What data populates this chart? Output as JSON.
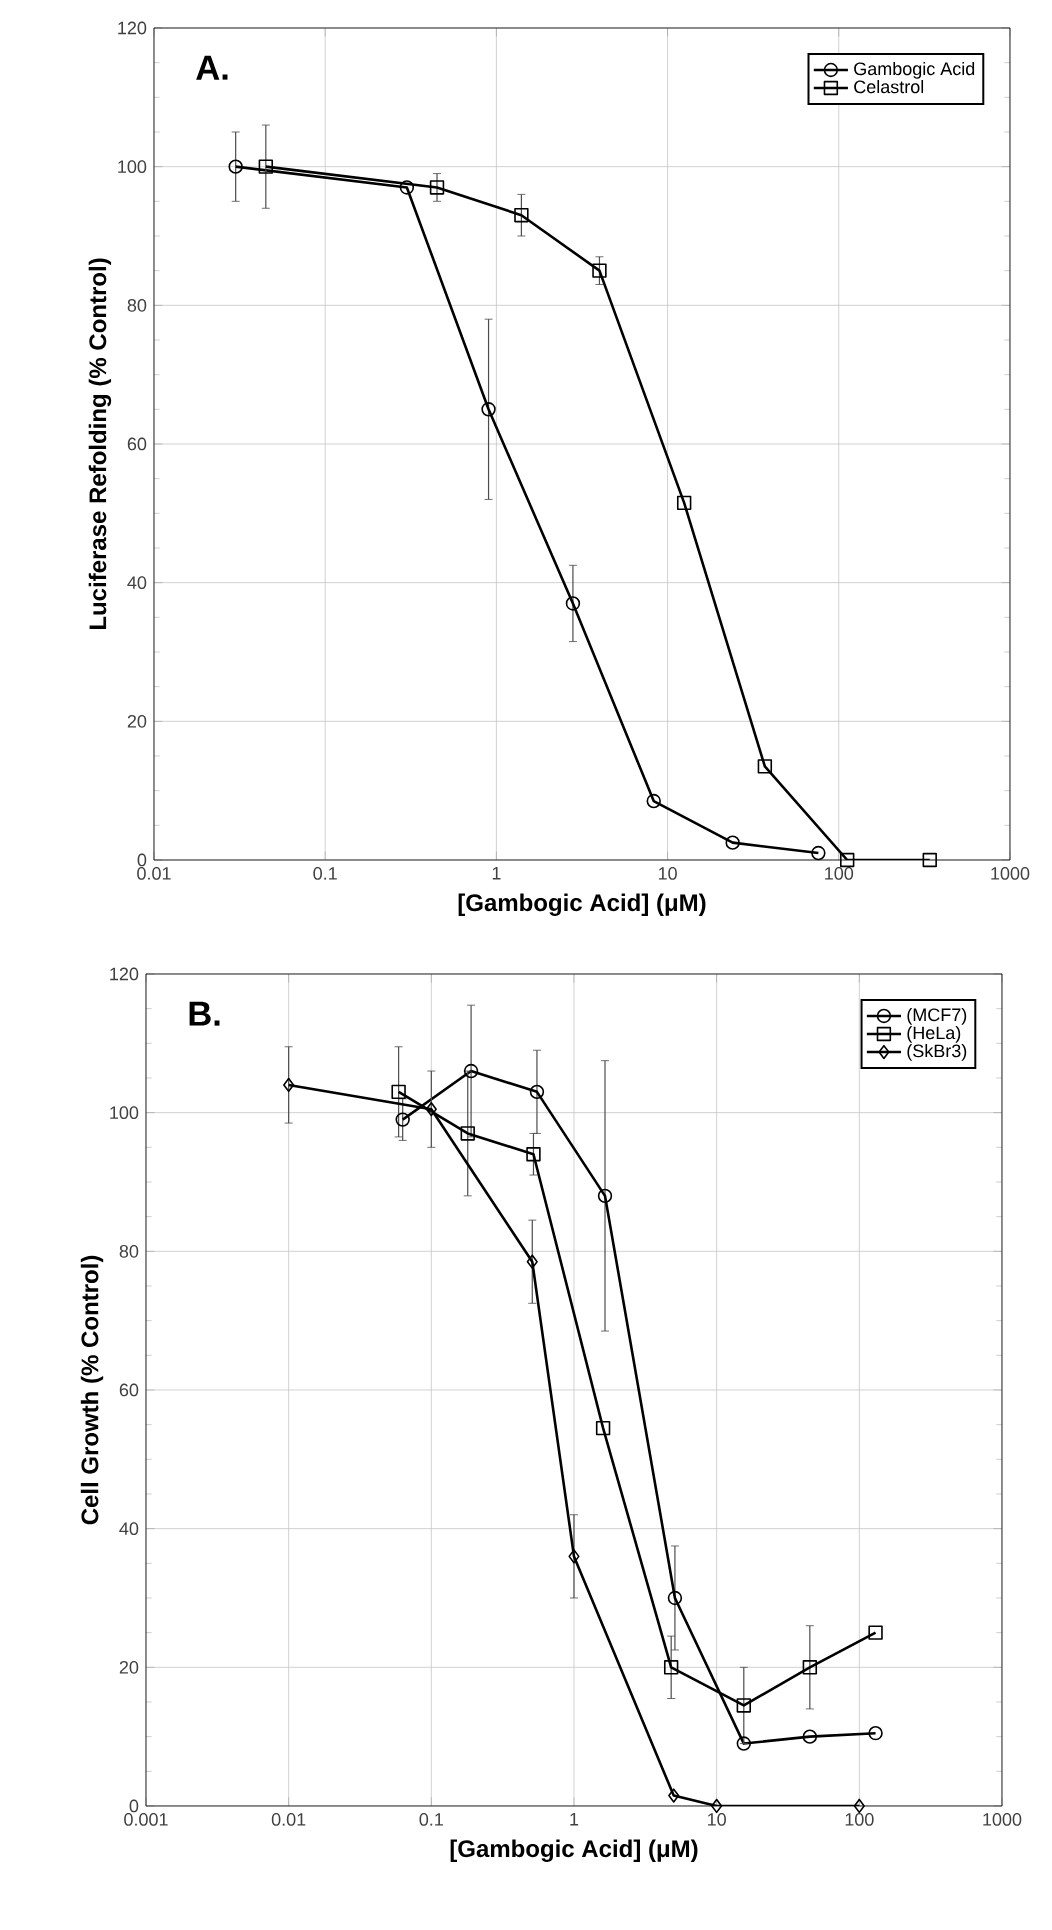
{
  "chart_data": [
    {
      "type": "line",
      "annotations": [
        "A."
      ],
      "xlabel": "[Gambogic Acid] (μM)",
      "ylabel": "Luciferase Refolding (% Control)",
      "log": "x",
      "xlim": [
        0.01,
        1000
      ],
      "xticks": [
        0.01,
        0.1,
        1,
        10,
        100,
        1000
      ],
      "ylim": [
        0,
        120
      ],
      "yticks": [
        0,
        20,
        40,
        60,
        80,
        100,
        120
      ],
      "grid": true,
      "legend": "top right",
      "line_style": "solid",
      "series": [
        {
          "name": "Gambogic Acid",
          "color": "#000000",
          "marker": "circle",
          "x": [
            0.03,
            0.3,
            0.9,
            2.8,
            8.3,
            24,
            76
          ],
          "values": [
            100,
            97,
            65,
            37,
            8.5,
            2.5,
            1
          ],
          "errors": [
            5,
            null,
            13,
            5.5,
            null,
            null,
            null
          ]
        },
        {
          "name": "Celastrol",
          "color": "#000000",
          "marker": "square",
          "x": [
            0.045,
            0.45,
            1.4,
            4,
            12.5,
            37,
            112,
            340
          ],
          "values": [
            100,
            97,
            93,
            85,
            51.5,
            13.5,
            0,
            0
          ],
          "errors": [
            6,
            2,
            3,
            2,
            null,
            null,
            null,
            null
          ]
        }
      ]
    },
    {
      "type": "line",
      "annotations": [
        "B."
      ],
      "xlabel": "[Gambogic Acid] (μM)",
      "ylabel": "Cell Growth (% Control)",
      "log": "x",
      "xlim": [
        0.001,
        1000
      ],
      "xticks": [
        0.001,
        0.01,
        0.1,
        1,
        10,
        100,
        1000
      ],
      "ylim": [
        0,
        120
      ],
      "yticks": [
        0,
        20,
        40,
        60,
        80,
        100,
        120
      ],
      "grid": true,
      "legend": "top right",
      "line_style": "solid",
      "series": [
        {
          "name": "(MCF7)",
          "color": "#000000",
          "marker": "circle",
          "x": [
            0.063,
            0.19,
            0.55,
            1.65,
            5.1,
            15.5,
            45,
            130
          ],
          "values": [
            99,
            106,
            103,
            88,
            30,
            9,
            10,
            10.5
          ],
          "errors": [
            3,
            9.5,
            6,
            19.5,
            7.5,
            null,
            null,
            null
          ]
        },
        {
          "name": "(HeLa)",
          "color": "#000000",
          "marker": "square",
          "x": [
            0.059,
            0.18,
            0.52,
            1.6,
            4.8,
            15.5,
            45,
            130
          ],
          "values": [
            103,
            97,
            94,
            54.5,
            20,
            14.5,
            20,
            25
          ],
          "errors": [
            6.5,
            9,
            3,
            null,
            4.5,
            5.5,
            6,
            null
          ]
        },
        {
          "name": "(SkBr3)",
          "color": "#000000",
          "marker": "diamond",
          "x": [
            0.01,
            0.1,
            0.51,
            1,
            5,
            10,
            100
          ],
          "values": [
            104,
            100.5,
            78.5,
            36,
            1.5,
            0,
            0
          ],
          "errors": [
            5.5,
            5.5,
            6,
            6,
            null,
            null,
            null
          ]
        }
      ]
    }
  ]
}
